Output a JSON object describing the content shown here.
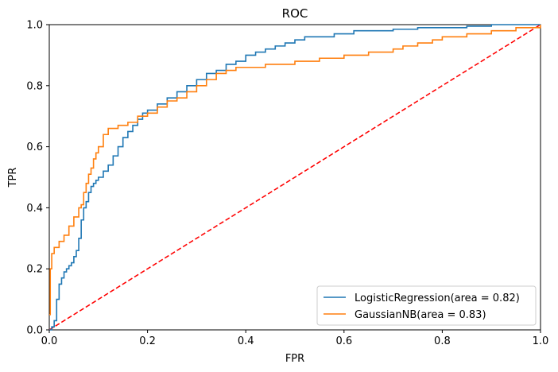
{
  "chart_data": {
    "type": "line",
    "title": "ROC",
    "xlabel": "FPR",
    "ylabel": "TPR",
    "xlim": [
      0.0,
      1.0
    ],
    "ylim": [
      0.0,
      1.0
    ],
    "xticks": [
      "0.0",
      "0.2",
      "0.4",
      "0.6",
      "0.8",
      "1.0"
    ],
    "yticks": [
      "0.0",
      "0.2",
      "0.4",
      "0.6",
      "0.8",
      "1.0"
    ],
    "grid": false,
    "legend_position": "lower-right",
    "series": [
      {
        "name": "LogisticRegression(area = 0.82)",
        "color": "#1f77b4",
        "style": "step",
        "x": [
          0.0,
          0.005,
          0.01,
          0.015,
          0.02,
          0.025,
          0.03,
          0.035,
          0.04,
          0.045,
          0.05,
          0.055,
          0.06,
          0.065,
          0.07,
          0.075,
          0.08,
          0.085,
          0.09,
          0.095,
          0.1,
          0.11,
          0.12,
          0.13,
          0.14,
          0.15,
          0.16,
          0.17,
          0.18,
          0.19,
          0.2,
          0.22,
          0.24,
          0.26,
          0.28,
          0.3,
          0.32,
          0.34,
          0.36,
          0.38,
          0.4,
          0.42,
          0.44,
          0.46,
          0.48,
          0.5,
          0.52,
          0.55,
          0.58,
          0.6,
          0.62,
          0.65,
          0.7,
          0.75,
          0.8,
          0.85,
          0.9,
          0.95,
          1.0
        ],
        "y": [
          0.0,
          0.01,
          0.03,
          0.1,
          0.15,
          0.17,
          0.19,
          0.2,
          0.21,
          0.22,
          0.24,
          0.26,
          0.3,
          0.36,
          0.4,
          0.42,
          0.45,
          0.47,
          0.48,
          0.49,
          0.5,
          0.52,
          0.54,
          0.57,
          0.6,
          0.63,
          0.65,
          0.67,
          0.69,
          0.71,
          0.72,
          0.74,
          0.76,
          0.78,
          0.8,
          0.82,
          0.84,
          0.85,
          0.87,
          0.88,
          0.9,
          0.91,
          0.92,
          0.93,
          0.94,
          0.95,
          0.96,
          0.96,
          0.97,
          0.97,
          0.98,
          0.98,
          0.985,
          0.99,
          0.99,
          0.995,
          1.0,
          1.0,
          1.0
        ]
      },
      {
        "name": "GaussianNB(area = 0.83)",
        "color": "#ff7f0e",
        "style": "step",
        "x": [
          0.0,
          0.002,
          0.005,
          0.01,
          0.02,
          0.03,
          0.04,
          0.05,
          0.06,
          0.065,
          0.07,
          0.075,
          0.08,
          0.085,
          0.09,
          0.095,
          0.1,
          0.11,
          0.12,
          0.13,
          0.14,
          0.16,
          0.18,
          0.2,
          0.22,
          0.24,
          0.26,
          0.28,
          0.3,
          0.32,
          0.34,
          0.36,
          0.38,
          0.4,
          0.44,
          0.48,
          0.5,
          0.55,
          0.6,
          0.65,
          0.7,
          0.72,
          0.75,
          0.78,
          0.8,
          0.85,
          0.9,
          0.95,
          1.0
        ],
        "y": [
          0.05,
          0.2,
          0.25,
          0.27,
          0.29,
          0.31,
          0.34,
          0.37,
          0.4,
          0.41,
          0.45,
          0.48,
          0.51,
          0.53,
          0.56,
          0.58,
          0.6,
          0.64,
          0.66,
          0.66,
          0.67,
          0.68,
          0.7,
          0.71,
          0.73,
          0.75,
          0.76,
          0.78,
          0.8,
          0.82,
          0.84,
          0.85,
          0.86,
          0.86,
          0.87,
          0.87,
          0.88,
          0.89,
          0.9,
          0.91,
          0.92,
          0.93,
          0.94,
          0.95,
          0.96,
          0.97,
          0.98,
          0.99,
          1.0
        ]
      },
      {
        "name": "",
        "color": "#ff0000",
        "style": "dashed",
        "x": [
          0.0,
          1.0
        ],
        "y": [
          0.0,
          1.0
        ]
      }
    ]
  }
}
